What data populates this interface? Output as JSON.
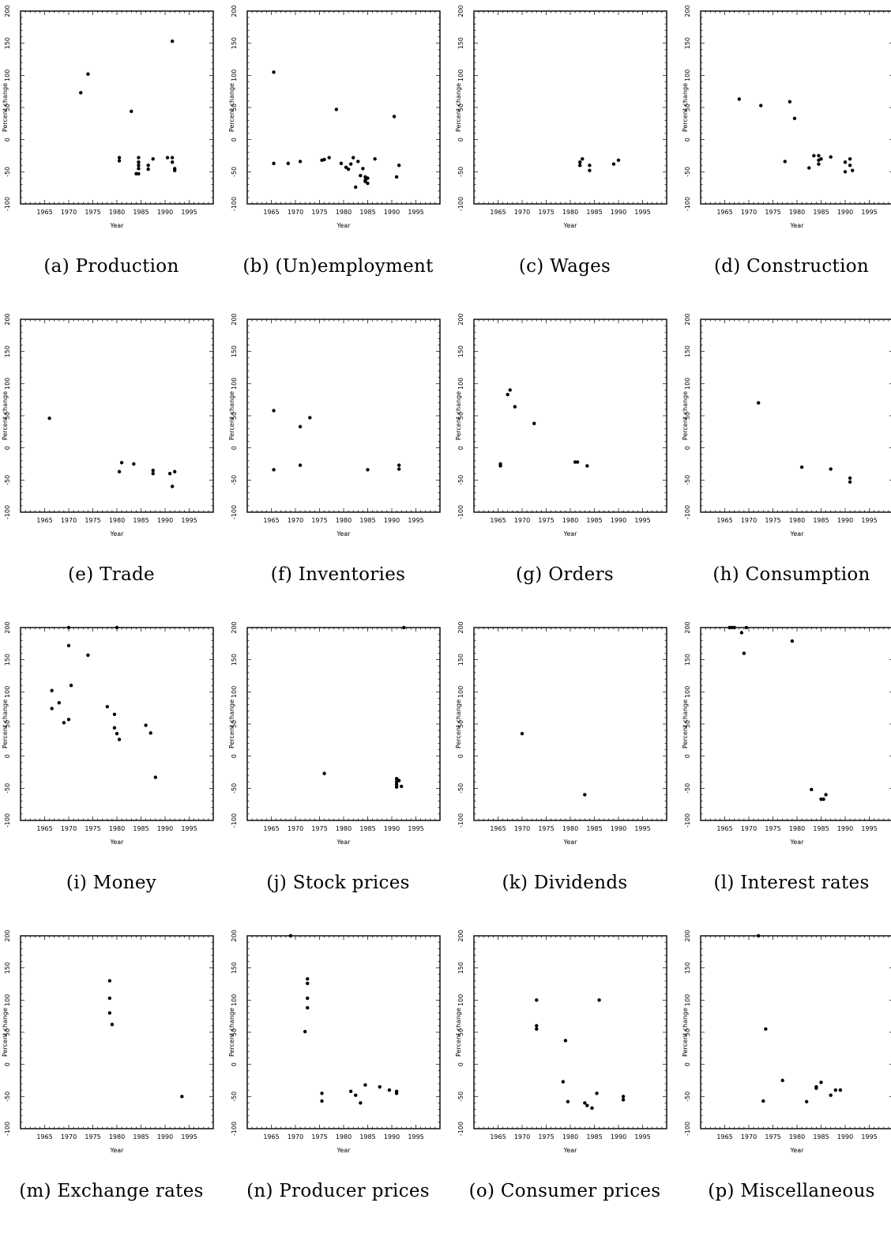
{
  "chart_data": [
    {
      "type": "scatter",
      "caption": "(a) Production",
      "xlabel": "Year",
      "ylabel": "Percent change",
      "xlim": [
        1960,
        2000
      ],
      "ylim": [
        -100,
        200
      ],
      "x_ticks": [
        "1965",
        "1970",
        "1975",
        "1980",
        "1985",
        "1990",
        "1995"
      ],
      "y_ticks": [
        "-100",
        "-50",
        "0",
        "50",
        "100",
        "150",
        "200"
      ],
      "points": [
        [
          1972.5,
          73
        ],
        [
          1974,
          102
        ],
        [
          1983,
          44
        ],
        [
          1980.5,
          -28
        ],
        [
          1980.5,
          -33
        ],
        [
          1984.5,
          -28
        ],
        [
          1984.5,
          -35
        ],
        [
          1984.5,
          -40
        ],
        [
          1984.5,
          -45
        ],
        [
          1984,
          -53
        ],
        [
          1984.5,
          -53
        ],
        [
          1986.5,
          -40
        ],
        [
          1986.5,
          -46
        ],
        [
          1987.5,
          -30
        ],
        [
          1990.5,
          -28
        ],
        [
          1991.5,
          -28
        ],
        [
          1991.5,
          -35
        ],
        [
          1992,
          -45
        ],
        [
          1992,
          -48
        ],
        [
          1991.5,
          153
        ]
      ]
    },
    {
      "type": "scatter",
      "caption": "(b) (Un)employment",
      "xlabel": "Year",
      "ylabel": "Percent change",
      "xlim": [
        1960,
        2000
      ],
      "ylim": [
        -100,
        200
      ],
      "x_ticks": [
        "1965",
        "1970",
        "1975",
        "1980",
        "1985",
        "1990",
        "1995"
      ],
      "y_ticks": [
        "-100",
        "-50",
        "0",
        "50",
        "100",
        "150",
        "200"
      ],
      "points": [
        [
          1965.5,
          105
        ],
        [
          1965.5,
          -37
        ],
        [
          1968.5,
          -37
        ],
        [
          1971,
          -34
        ],
        [
          1975.5,
          -32
        ],
        [
          1976,
          -31
        ],
        [
          1977,
          -28
        ],
        [
          1978.5,
          47
        ],
        [
          1979.5,
          -37
        ],
        [
          1980.5,
          -43
        ],
        [
          1981,
          -46
        ],
        [
          1981.5,
          -38
        ],
        [
          1982,
          -28
        ],
        [
          1982.5,
          -74
        ],
        [
          1983,
          -34
        ],
        [
          1983.5,
          -56
        ],
        [
          1984,
          -45
        ],
        [
          1984.5,
          -58
        ],
        [
          1984.5,
          -63
        ],
        [
          1985,
          -60
        ],
        [
          1985,
          -68
        ],
        [
          1984.5,
          -65
        ],
        [
          1986.5,
          -30
        ],
        [
          1990.5,
          36
        ],
        [
          1991,
          -58
        ],
        [
          1991.5,
          -40
        ]
      ]
    },
    {
      "type": "scatter",
      "caption": "(c) Wages",
      "xlabel": "Year",
      "ylabel": "Percent change",
      "xlim": [
        1960,
        2000
      ],
      "ylim": [
        -100,
        200
      ],
      "x_ticks": [
        "1965",
        "1970",
        "1975",
        "1980",
        "1985",
        "1990",
        "1995"
      ],
      "y_ticks": [
        "-100",
        "-50",
        "0",
        "50",
        "100",
        "150",
        "200"
      ],
      "points": [
        [
          1982,
          -35
        ],
        [
          1982.5,
          -30
        ],
        [
          1982,
          -40
        ],
        [
          1984,
          -48
        ],
        [
          1984,
          -40
        ],
        [
          1989,
          -38
        ],
        [
          1990,
          -32
        ]
      ]
    },
    {
      "type": "scatter",
      "caption": "(d) Construction",
      "xlabel": "Year",
      "ylabel": "Percent change",
      "xlim": [
        1960,
        2000
      ],
      "ylim": [
        -100,
        200
      ],
      "x_ticks": [
        "1965",
        "1970",
        "1975",
        "1980",
        "1985",
        "1990",
        "1995"
      ],
      "y_ticks": [
        "-100",
        "-50",
        "0",
        "50",
        "100",
        "150",
        "200"
      ],
      "points": [
        [
          1968,
          63
        ],
        [
          1972.5,
          53
        ],
        [
          1978.5,
          59
        ],
        [
          1979.5,
          33
        ],
        [
          1977.5,
          -34
        ],
        [
          1982.5,
          -44
        ],
        [
          1983.5,
          -25
        ],
        [
          1984.5,
          -25
        ],
        [
          1984.5,
          -32
        ],
        [
          1985,
          -30
        ],
        [
          1984.5,
          -38
        ],
        [
          1987,
          -27
        ],
        [
          1990,
          -35
        ],
        [
          1990,
          -50
        ],
        [
          1991,
          -30
        ],
        [
          1991,
          -40
        ],
        [
          1991.5,
          -48
        ]
      ]
    },
    {
      "type": "scatter",
      "caption": "(e) Trade",
      "xlabel": "Year",
      "ylabel": "Percent change",
      "xlim": [
        1960,
        2000
      ],
      "ylim": [
        -100,
        200
      ],
      "x_ticks": [
        "1965",
        "1970",
        "1975",
        "1980",
        "1985",
        "1990",
        "1995"
      ],
      "y_ticks": [
        "-100",
        "-50",
        "0",
        "50",
        "100",
        "150",
        "200"
      ],
      "points": [
        [
          1966,
          46
        ],
        [
          1980.5,
          -37
        ],
        [
          1981,
          -23
        ],
        [
          1983.5,
          -25
        ],
        [
          1987.5,
          -35
        ],
        [
          1987.5,
          -40
        ],
        [
          1991,
          -40
        ],
        [
          1991.5,
          -60
        ],
        [
          1992,
          -37
        ]
      ]
    },
    {
      "type": "scatter",
      "caption": "(f) Inventories",
      "xlabel": "Year",
      "ylabel": "Percent change",
      "xlim": [
        1960,
        2000
      ],
      "ylim": [
        -100,
        200
      ],
      "x_ticks": [
        "1965",
        "1970",
        "1975",
        "1980",
        "1985",
        "1990",
        "1995"
      ],
      "y_ticks": [
        "-100",
        "-50",
        "0",
        "50",
        "100",
        "150",
        "200"
      ],
      "points": [
        [
          1965.5,
          58
        ],
        [
          1965.5,
          -34
        ],
        [
          1971,
          33
        ],
        [
          1971,
          -27
        ],
        [
          1973,
          47
        ],
        [
          1985,
          -34
        ],
        [
          1991.5,
          -27
        ],
        [
          1991.5,
          -33
        ]
      ]
    },
    {
      "type": "scatter",
      "caption": "(g) Orders",
      "xlabel": "Year",
      "ylabel": "Percent change",
      "xlim": [
        1960,
        2000
      ],
      "ylim": [
        -100,
        200
      ],
      "x_ticks": [
        "1965",
        "1970",
        "1975",
        "1980",
        "1985",
        "1990",
        "1995"
      ],
      "y_ticks": [
        "-100",
        "-50",
        "0",
        "50",
        "100",
        "150",
        "200"
      ],
      "points": [
        [
          1965.5,
          -25
        ],
        [
          1965.5,
          -28
        ],
        [
          1967,
          83
        ],
        [
          1967.5,
          90
        ],
        [
          1968.5,
          64
        ],
        [
          1972.5,
          38
        ],
        [
          1981,
          -22
        ],
        [
          1981.5,
          -22
        ],
        [
          1983.5,
          -28
        ]
      ]
    },
    {
      "type": "scatter",
      "caption": "(h) Consumption",
      "xlabel": "Year",
      "ylabel": "Percent change",
      "xlim": [
        1960,
        2000
      ],
      "ylim": [
        -100,
        200
      ],
      "x_ticks": [
        "1965",
        "1970",
        "1975",
        "1980",
        "1985",
        "1990",
        "1995"
      ],
      "y_ticks": [
        "-100",
        "-50",
        "0",
        "50",
        "100",
        "150",
        "200"
      ],
      "points": [
        [
          1972,
          70
        ],
        [
          1981,
          -30
        ],
        [
          1987,
          -33
        ],
        [
          1991,
          -47
        ],
        [
          1991,
          -53
        ]
      ]
    },
    {
      "type": "scatter",
      "caption": "(i) Money",
      "xlabel": "Year",
      "ylabel": "Percent change",
      "xlim": [
        1960,
        2000
      ],
      "ylim": [
        -100,
        200
      ],
      "x_ticks": [
        "1965",
        "1970",
        "1975",
        "1980",
        "1985",
        "1990",
        "1995"
      ],
      "y_ticks": [
        "-100",
        "-50",
        "0",
        "50",
        "100",
        "150",
        "200"
      ],
      "points": [
        [
          1966.5,
          102
        ],
        [
          1966.5,
          74
        ],
        [
          1968,
          83
        ],
        [
          1969,
          52
        ],
        [
          1970,
          57
        ],
        [
          1970,
          200
        ],
        [
          1970,
          172
        ],
        [
          1970.5,
          110
        ],
        [
          1974,
          157
        ],
        [
          1978,
          77
        ],
        [
          1979.5,
          65
        ],
        [
          1979.5,
          44
        ],
        [
          1980,
          35
        ],
        [
          1980,
          200
        ],
        [
          1980.5,
          26
        ],
        [
          1986,
          48
        ],
        [
          1987,
          36
        ],
        [
          1988,
          -33
        ]
      ]
    },
    {
      "type": "scatter",
      "caption": "(j) Stock prices",
      "xlabel": "Year",
      "ylabel": "Percent change",
      "xlim": [
        1960,
        2000
      ],
      "ylim": [
        -100,
        200
      ],
      "x_ticks": [
        "1965",
        "1970",
        "1975",
        "1980",
        "1985",
        "1990",
        "1995"
      ],
      "y_ticks": [
        "-100",
        "-50",
        "0",
        "50",
        "100",
        "150",
        "200"
      ],
      "points": [
        [
          1976,
          -27
        ],
        [
          1991,
          -35
        ],
        [
          1991,
          -40
        ],
        [
          1991,
          -44
        ],
        [
          1991,
          -48
        ],
        [
          1991.5,
          -38
        ],
        [
          1992,
          -47
        ],
        [
          1992.5,
          200
        ]
      ]
    },
    {
      "type": "scatter",
      "caption": "(k) Dividends",
      "xlabel": "Year",
      "ylabel": "Percent change",
      "xlim": [
        1960,
        2000
      ],
      "ylim": [
        -100,
        200
      ],
      "x_ticks": [
        "1965",
        "1970",
        "1975",
        "1980",
        "1985",
        "1990",
        "1995"
      ],
      "y_ticks": [
        "-100",
        "-50",
        "0",
        "50",
        "100",
        "150",
        "200"
      ],
      "points": [
        [
          1970,
          35
        ],
        [
          1983,
          -60
        ]
      ]
    },
    {
      "type": "scatter",
      "caption": "(l) Interest rates",
      "xlabel": "Year",
      "ylabel": "Percent change",
      "xlim": [
        1960,
        2000
      ],
      "ylim": [
        -100,
        200
      ],
      "x_ticks": [
        "1965",
        "1970",
        "1975",
        "1980",
        "1985",
        "1990",
        "1995"
      ],
      "y_ticks": [
        "-100",
        "-50",
        "0",
        "50",
        "100",
        "150",
        "200"
      ],
      "points": [
        [
          1966,
          200
        ],
        [
          1966.5,
          200
        ],
        [
          1967,
          200
        ],
        [
          1968.5,
          192
        ],
        [
          1969,
          160
        ],
        [
          1969.5,
          200
        ],
        [
          1979,
          179
        ],
        [
          1983,
          -52
        ],
        [
          1985,
          -67
        ],
        [
          1985.5,
          -67
        ],
        [
          1986,
          -60
        ]
      ]
    },
    {
      "type": "scatter",
      "caption": "(m) Exchange rates",
      "xlabel": "Year",
      "ylabel": "Percent change",
      "xlim": [
        1960,
        2000
      ],
      "ylim": [
        -100,
        200
      ],
      "x_ticks": [
        "1965",
        "1970",
        "1975",
        "1980",
        "1985",
        "1990",
        "1995"
      ],
      "y_ticks": [
        "-100",
        "-50",
        "0",
        "50",
        "100",
        "150",
        "200"
      ],
      "points": [
        [
          1978.5,
          130
        ],
        [
          1978.5,
          103
        ],
        [
          1978.5,
          80
        ],
        [
          1979,
          62
        ],
        [
          1993.5,
          -50
        ]
      ]
    },
    {
      "type": "scatter",
      "caption": "(n) Producer prices",
      "xlabel": "Year",
      "ylabel": "Percent change",
      "xlim": [
        1960,
        2000
      ],
      "ylim": [
        -100,
        200
      ],
      "x_ticks": [
        "1965",
        "1970",
        "1975",
        "1980",
        "1985",
        "1990",
        "1995"
      ],
      "y_ticks": [
        "-100",
        "-50",
        "0",
        "50",
        "100",
        "150",
        "200"
      ],
      "points": [
        [
          1969,
          200
        ],
        [
          1972,
          51
        ],
        [
          1972.5,
          133
        ],
        [
          1972.5,
          126
        ],
        [
          1972.5,
          103
        ],
        [
          1972.5,
          88
        ],
        [
          1975.5,
          -45
        ],
        [
          1975.5,
          -57
        ],
        [
          1981.5,
          -42
        ],
        [
          1982.5,
          -48
        ],
        [
          1983.5,
          -60
        ],
        [
          1984.5,
          -32
        ],
        [
          1987.5,
          -35
        ],
        [
          1989.5,
          -40
        ],
        [
          1991,
          -42
        ],
        [
          1991,
          -45
        ]
      ]
    },
    {
      "type": "scatter",
      "caption": "(o) Consumer prices",
      "xlabel": "Year",
      "ylabel": "Percent change",
      "xlim": [
        1960,
        2000
      ],
      "ylim": [
        -100,
        200
      ],
      "x_ticks": [
        "1965",
        "1970",
        "1975",
        "1980",
        "1985",
        "1990",
        "1995"
      ],
      "y_ticks": [
        "-100",
        "-50",
        "0",
        "50",
        "100",
        "150",
        "200"
      ],
      "points": [
        [
          1973,
          100
        ],
        [
          1973,
          60
        ],
        [
          1973,
          55
        ],
        [
          1978.5,
          -27
        ],
        [
          1979,
          37
        ],
        [
          1979.5,
          -58
        ],
        [
          1983,
          -60
        ],
        [
          1983.5,
          -64
        ],
        [
          1984.5,
          -68
        ],
        [
          1985.5,
          -45
        ],
        [
          1986,
          100
        ],
        [
          1991,
          -50
        ],
        [
          1991,
          -55
        ]
      ]
    },
    {
      "type": "scatter",
      "caption": "(p) Miscellaneous",
      "xlabel": "Year",
      "ylabel": "Percent change",
      "xlim": [
        1960,
        2000
      ],
      "ylim": [
        -100,
        200
      ],
      "x_ticks": [
        "1965",
        "1970",
        "1975",
        "1980",
        "1985",
        "1990",
        "1995"
      ],
      "y_ticks": [
        "-100",
        "-50",
        "0",
        "50",
        "100",
        "150",
        "200"
      ],
      "points": [
        [
          1972,
          200
        ],
        [
          1973,
          -57
        ],
        [
          1973.5,
          55
        ],
        [
          1977,
          -25
        ],
        [
          1982,
          -58
        ],
        [
          1984,
          -37
        ],
        [
          1984,
          -35
        ],
        [
          1985,
          -28
        ],
        [
          1987,
          -48
        ],
        [
          1988,
          -40
        ],
        [
          1989,
          -40
        ]
      ]
    }
  ]
}
